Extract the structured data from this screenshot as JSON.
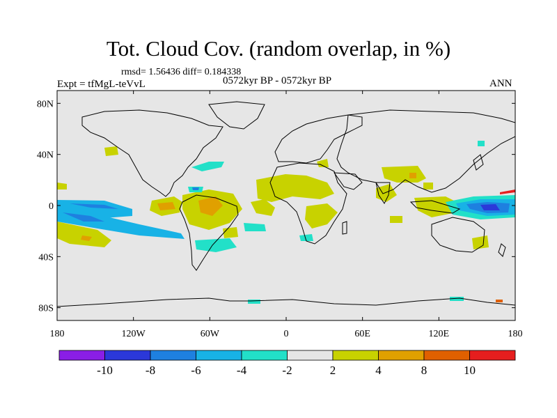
{
  "title": "Tot. Cloud Cov. (random overlap, in %)",
  "stats": "rmsd= 1.56436 diff= 0.184338",
  "experiment": "Expt = tfMgL-teVvL",
  "period": "0572kyr BP - 0572kyr BP",
  "season": "ANN",
  "map": {
    "projection": "equirectangular",
    "lon_range": [
      -180,
      180
    ],
    "lat_range": [
      -90,
      90
    ],
    "background_color": "#e6e6e6",
    "x_tick_labels": [
      "180",
      "120W",
      "60W",
      "0",
      "60E",
      "120E",
      "180"
    ],
    "y_tick_labels": [
      "80N",
      "40N",
      "0",
      "40S",
      "80S"
    ]
  },
  "colorbar": {
    "levels": [
      "-10",
      "-8",
      "-6",
      "-4",
      "-2",
      "2",
      "4",
      "8",
      "10"
    ],
    "colors": [
      "#8a1ee6",
      "#2b38d9",
      "#1e80e0",
      "#18b2e6",
      "#22e0c8",
      "#e6e6e6",
      "#c8d200",
      "#e0a000",
      "#e06000",
      "#e61e1e"
    ]
  }
}
